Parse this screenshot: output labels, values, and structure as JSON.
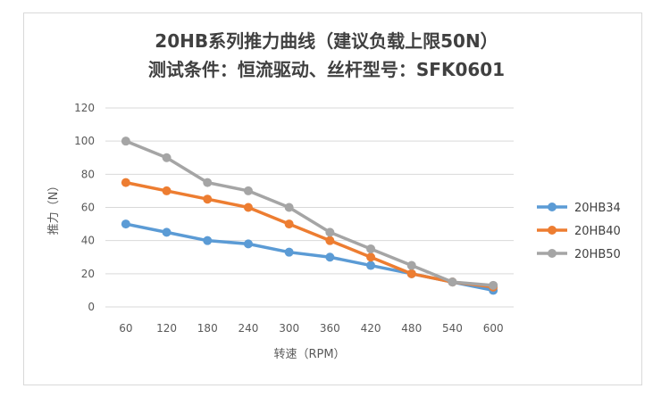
{
  "chart_data": {
    "type": "line",
    "title": "20HB系列推力曲线（建议负载上限50N）",
    "subtitle": "测试条件：恒流驱动、丝杆型号：SFK0601",
    "xlabel": "转速（RPM）",
    "ylabel": "推力（N）",
    "categories": [
      "60",
      "120",
      "180",
      "240",
      "300",
      "360",
      "420",
      "480",
      "540",
      "600"
    ],
    "yticks": [
      "0",
      "20",
      "40",
      "60",
      "80",
      "100",
      "120"
    ],
    "ylim": [
      0,
      120
    ],
    "grid": true,
    "legend_position": "right",
    "series": [
      {
        "name": "20HB34",
        "color": "#5b9bd5",
        "values": [
          50,
          45,
          40,
          38,
          33,
          30,
          25,
          20,
          15,
          10
        ]
      },
      {
        "name": "20HB40",
        "color": "#ed7d31",
        "values": [
          75,
          70,
          65,
          60,
          50,
          40,
          30,
          20,
          15,
          12
        ]
      },
      {
        "name": "20HB50",
        "color": "#a5a5a5",
        "values": [
          100,
          90,
          75,
          70,
          60,
          45,
          35,
          25,
          15,
          13
        ]
      }
    ]
  }
}
